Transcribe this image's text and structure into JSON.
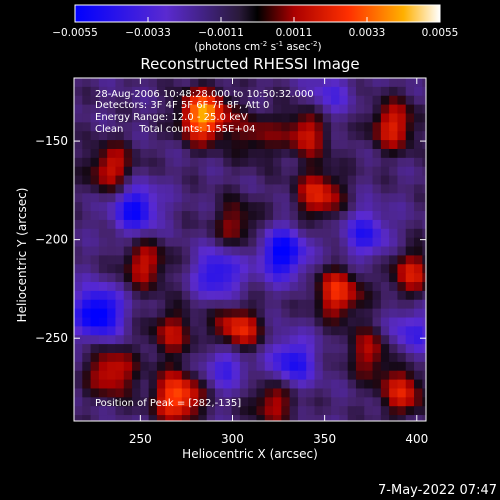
{
  "chart_data": {
    "type": "heatmap",
    "title": "Reconstructed RHESSI Image",
    "xlabel": "Heliocentric X (arcsec)",
    "ylabel": "Heliocentric Y (arcsec)",
    "xlim": [
      214,
      405
    ],
    "ylim": [
      -292,
      -118
    ],
    "x_ticks": [
      250,
      300,
      350,
      400
    ],
    "y_ticks": [
      -150,
      -200,
      -250
    ],
    "colorbar": {
      "range": [
        -0.0055,
        0.0055
      ],
      "ticks": [
        "-0.0055",
        "-0.0033",
        "-0.0011",
        "0.0011",
        "0.0033",
        "0.0055"
      ],
      "unit_text": "(photons cm",
      "unit_sup1": "-2",
      "unit_mid": " s",
      "unit_sup2": "-1",
      "unit_mid2": " asec",
      "unit_sup3": "-2",
      "unit_end": ")"
    },
    "annotations": [
      "28-Aug-2006 10:48:28.000 to 10:50:32.000",
      "Detectors: 3F 4F 5F 6F 7F 8F, Att 0",
      "Energy Range: 12.0 - 25.0 keV",
      "Clean     Total counts: 1.55E+04",
      "Position of Peak = [282,-135]"
    ],
    "peak": {
      "x": 282,
      "y": -135
    },
    "blobs": [
      {
        "x": 282,
        "y": -135,
        "v": 0.0055
      },
      {
        "x": 268,
        "y": -278,
        "v": 0.0045
      },
      {
        "x": 345,
        "y": -175,
        "v": 0.0033
      },
      {
        "x": 338,
        "y": -143,
        "v": 0.003
      },
      {
        "x": 385,
        "y": -140,
        "v": 0.0032
      },
      {
        "x": 232,
        "y": -162,
        "v": 0.003
      },
      {
        "x": 250,
        "y": -210,
        "v": 0.0028
      },
      {
        "x": 232,
        "y": -265,
        "v": 0.0032
      },
      {
        "x": 300,
        "y": -245,
        "v": 0.004
      },
      {
        "x": 355,
        "y": -225,
        "v": 0.0036
      },
      {
        "x": 395,
        "y": -215,
        "v": 0.0028
      },
      {
        "x": 390,
        "y": -275,
        "v": 0.003
      },
      {
        "x": 320,
        "y": -280,
        "v": 0.0026
      },
      {
        "x": 300,
        "y": -190,
        "v": 0.0022
      },
      {
        "x": 265,
        "y": -245,
        "v": 0.0024
      },
      {
        "x": 310,
        "y": -145,
        "v": 0.002
      },
      {
        "x": 372,
        "y": -255,
        "v": 0.0024
      },
      {
        "x": 290,
        "y": -215,
        "v": -0.0035
      },
      {
        "x": 325,
        "y": -205,
        "v": -0.0045
      },
      {
        "x": 245,
        "y": -182,
        "v": -0.004
      },
      {
        "x": 225,
        "y": -235,
        "v": -0.005
      },
      {
        "x": 330,
        "y": -260,
        "v": -0.0035
      },
      {
        "x": 370,
        "y": -195,
        "v": -0.003
      },
      {
        "x": 295,
        "y": -260,
        "v": -0.003
      },
      {
        "x": 395,
        "y": -245,
        "v": -0.0025
      },
      {
        "x": 350,
        "y": -125,
        "v": -0.002
      }
    ]
  },
  "timestamp": "7-May-2022 07:47"
}
